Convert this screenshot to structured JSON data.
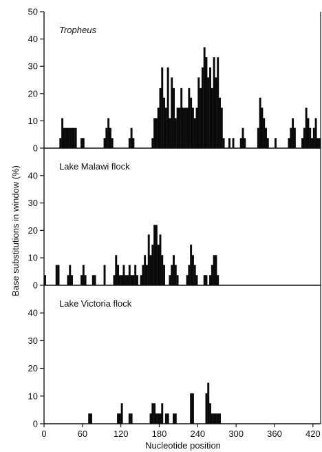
{
  "chart_data": {
    "type": "bar",
    "xlabel": "Nucleotide position",
    "ylabel": "Base substitutions in window (%)",
    "xlim": [
      0,
      432
    ],
    "xticks": [
      0,
      60,
      120,
      180,
      240,
      300,
      360,
      420
    ],
    "ylim": [
      0,
      50
    ],
    "yticks": [
      0,
      10,
      20,
      30,
      40,
      50
    ],
    "grid": false,
    "bin_width": 3,
    "panels": [
      {
        "title": "Tropheus",
        "title_italic": true,
        "bins": [
          {
            "x": 24,
            "y": 3.7
          },
          {
            "x": 27,
            "y": 11
          },
          {
            "x": 30,
            "y": 7.4
          },
          {
            "x": 33,
            "y": 7.4
          },
          {
            "x": 36,
            "y": 7.4
          },
          {
            "x": 39,
            "y": 7.4
          },
          {
            "x": 42,
            "y": 7.4
          },
          {
            "x": 45,
            "y": 7.4
          },
          {
            "x": 48,
            "y": 7.4
          },
          {
            "x": 57,
            "y": 3.7
          },
          {
            "x": 60,
            "y": 3.7
          },
          {
            "x": 93,
            "y": 3.7
          },
          {
            "x": 96,
            "y": 7.4
          },
          {
            "x": 99,
            "y": 11
          },
          {
            "x": 102,
            "y": 7.4
          },
          {
            "x": 105,
            "y": 3.7
          },
          {
            "x": 132,
            "y": 3.7
          },
          {
            "x": 135,
            "y": 7.4
          },
          {
            "x": 138,
            "y": 3.7
          },
          {
            "x": 168,
            "y": 3.7
          },
          {
            "x": 171,
            "y": 11
          },
          {
            "x": 174,
            "y": 11
          },
          {
            "x": 177,
            "y": 14.8
          },
          {
            "x": 180,
            "y": 22
          },
          {
            "x": 183,
            "y": 29.6
          },
          {
            "x": 186,
            "y": 18.5
          },
          {
            "x": 189,
            "y": 14.8
          },
          {
            "x": 192,
            "y": 29.6
          },
          {
            "x": 195,
            "y": 11
          },
          {
            "x": 198,
            "y": 25.9
          },
          {
            "x": 201,
            "y": 22
          },
          {
            "x": 204,
            "y": 11
          },
          {
            "x": 207,
            "y": 14.8
          },
          {
            "x": 210,
            "y": 14.8
          },
          {
            "x": 213,
            "y": 22
          },
          {
            "x": 216,
            "y": 14.8
          },
          {
            "x": 219,
            "y": 14.8
          },
          {
            "x": 222,
            "y": 14.8
          },
          {
            "x": 225,
            "y": 22
          },
          {
            "x": 228,
            "y": 18.5
          },
          {
            "x": 231,
            "y": 14.8
          },
          {
            "x": 234,
            "y": 11
          },
          {
            "x": 237,
            "y": 14.8
          },
          {
            "x": 240,
            "y": 25.9
          },
          {
            "x": 243,
            "y": 22
          },
          {
            "x": 246,
            "y": 29.6
          },
          {
            "x": 249,
            "y": 37
          },
          {
            "x": 252,
            "y": 33.3
          },
          {
            "x": 255,
            "y": 25.9
          },
          {
            "x": 258,
            "y": 29.6
          },
          {
            "x": 261,
            "y": 22
          },
          {
            "x": 264,
            "y": 33.3
          },
          {
            "x": 267,
            "y": 25.9
          },
          {
            "x": 270,
            "y": 33.3
          },
          {
            "x": 273,
            "y": 18.5
          },
          {
            "x": 276,
            "y": 14.8
          },
          {
            "x": 279,
            "y": 3.7
          },
          {
            "x": 288,
            "y": 3.7
          },
          {
            "x": 294,
            "y": 3.7
          },
          {
            "x": 306,
            "y": 3.7
          },
          {
            "x": 309,
            "y": 7.4
          },
          {
            "x": 312,
            "y": 3.7
          },
          {
            "x": 333,
            "y": 7.4
          },
          {
            "x": 336,
            "y": 18.5
          },
          {
            "x": 339,
            "y": 14.8
          },
          {
            "x": 342,
            "y": 11
          },
          {
            "x": 345,
            "y": 7.4
          },
          {
            "x": 348,
            "y": 3.7
          },
          {
            "x": 360,
            "y": 3.7
          },
          {
            "x": 381,
            "y": 3.7
          },
          {
            "x": 384,
            "y": 7.4
          },
          {
            "x": 387,
            "y": 11
          },
          {
            "x": 390,
            "y": 7.4
          },
          {
            "x": 402,
            "y": 3.7
          },
          {
            "x": 405,
            "y": 7.4
          },
          {
            "x": 408,
            "y": 14.8
          },
          {
            "x": 411,
            "y": 11
          },
          {
            "x": 414,
            "y": 7.4
          },
          {
            "x": 417,
            "y": 3.7
          },
          {
            "x": 420,
            "y": 7.4
          },
          {
            "x": 423,
            "y": 11
          },
          {
            "x": 426,
            "y": 3.7
          },
          {
            "x": 429,
            "y": 3.7
          }
        ]
      },
      {
        "title": "Lake Malawi  flock",
        "title_italic": false,
        "bins": [
          {
            "x": 0,
            "y": 3.7
          },
          {
            "x": 18,
            "y": 7.4
          },
          {
            "x": 21,
            "y": 7.4
          },
          {
            "x": 36,
            "y": 3.7
          },
          {
            "x": 39,
            "y": 7.4
          },
          {
            "x": 42,
            "y": 3.7
          },
          {
            "x": 57,
            "y": 3.7
          },
          {
            "x": 60,
            "y": 7.4
          },
          {
            "x": 63,
            "y": 3.7
          },
          {
            "x": 75,
            "y": 3.7
          },
          {
            "x": 78,
            "y": 3.7
          },
          {
            "x": 93,
            "y": 7.4
          },
          {
            "x": 108,
            "y": 3.7
          },
          {
            "x": 111,
            "y": 11
          },
          {
            "x": 114,
            "y": 7.4
          },
          {
            "x": 117,
            "y": 3.7
          },
          {
            "x": 120,
            "y": 3.7
          },
          {
            "x": 123,
            "y": 7.4
          },
          {
            "x": 126,
            "y": 3.7
          },
          {
            "x": 129,
            "y": 3.7
          },
          {
            "x": 132,
            "y": 7.4
          },
          {
            "x": 135,
            "y": 3.7
          },
          {
            "x": 138,
            "y": 3.7
          },
          {
            "x": 141,
            "y": 7.4
          },
          {
            "x": 144,
            "y": 3.7
          },
          {
            "x": 150,
            "y": 3.7
          },
          {
            "x": 153,
            "y": 7.4
          },
          {
            "x": 156,
            "y": 11
          },
          {
            "x": 159,
            "y": 7.4
          },
          {
            "x": 162,
            "y": 18.5
          },
          {
            "x": 165,
            "y": 11
          },
          {
            "x": 168,
            "y": 14.8
          },
          {
            "x": 171,
            "y": 22
          },
          {
            "x": 174,
            "y": 22
          },
          {
            "x": 177,
            "y": 14.8
          },
          {
            "x": 180,
            "y": 18.5
          },
          {
            "x": 183,
            "y": 11
          },
          {
            "x": 186,
            "y": 7.4
          },
          {
            "x": 195,
            "y": 3.7
          },
          {
            "x": 198,
            "y": 7.4
          },
          {
            "x": 201,
            "y": 11
          },
          {
            "x": 204,
            "y": 7.4
          },
          {
            "x": 207,
            "y": 3.7
          },
          {
            "x": 222,
            "y": 3.7
          },
          {
            "x": 225,
            "y": 7.4
          },
          {
            "x": 228,
            "y": 14.8
          },
          {
            "x": 231,
            "y": 11
          },
          {
            "x": 234,
            "y": 7.4
          },
          {
            "x": 237,
            "y": 3.7
          },
          {
            "x": 249,
            "y": 3.7
          },
          {
            "x": 252,
            "y": 3.7
          },
          {
            "x": 258,
            "y": 3.7
          },
          {
            "x": 261,
            "y": 7.4
          },
          {
            "x": 264,
            "y": 11
          },
          {
            "x": 267,
            "y": 11
          },
          {
            "x": 270,
            "y": 3.7
          }
        ]
      },
      {
        "title": "Lake Victoria flock",
        "title_italic": false,
        "bins": [
          {
            "x": 69,
            "y": 3.7
          },
          {
            "x": 72,
            "y": 3.7
          },
          {
            "x": 114,
            "y": 3.7
          },
          {
            "x": 117,
            "y": 3.7
          },
          {
            "x": 120,
            "y": 7.4
          },
          {
            "x": 132,
            "y": 3.7
          },
          {
            "x": 135,
            "y": 3.7
          },
          {
            "x": 165,
            "y": 3.7
          },
          {
            "x": 168,
            "y": 7.4
          },
          {
            "x": 171,
            "y": 7.4
          },
          {
            "x": 174,
            "y": 3.7
          },
          {
            "x": 177,
            "y": 3.7
          },
          {
            "x": 180,
            "y": 3.7
          },
          {
            "x": 183,
            "y": 7.4
          },
          {
            "x": 189,
            "y": 3.7
          },
          {
            "x": 192,
            "y": 3.7
          },
          {
            "x": 201,
            "y": 3.7
          },
          {
            "x": 204,
            "y": 3.7
          },
          {
            "x": 228,
            "y": 11
          },
          {
            "x": 231,
            "y": 11
          },
          {
            "x": 252,
            "y": 11
          },
          {
            "x": 255,
            "y": 14.8
          },
          {
            "x": 258,
            "y": 7.4
          },
          {
            "x": 261,
            "y": 3.7
          },
          {
            "x": 264,
            "y": 3.7
          },
          {
            "x": 267,
            "y": 3.7
          },
          {
            "x": 270,
            "y": 3.7
          },
          {
            "x": 273,
            "y": 3.7
          }
        ]
      }
    ]
  }
}
